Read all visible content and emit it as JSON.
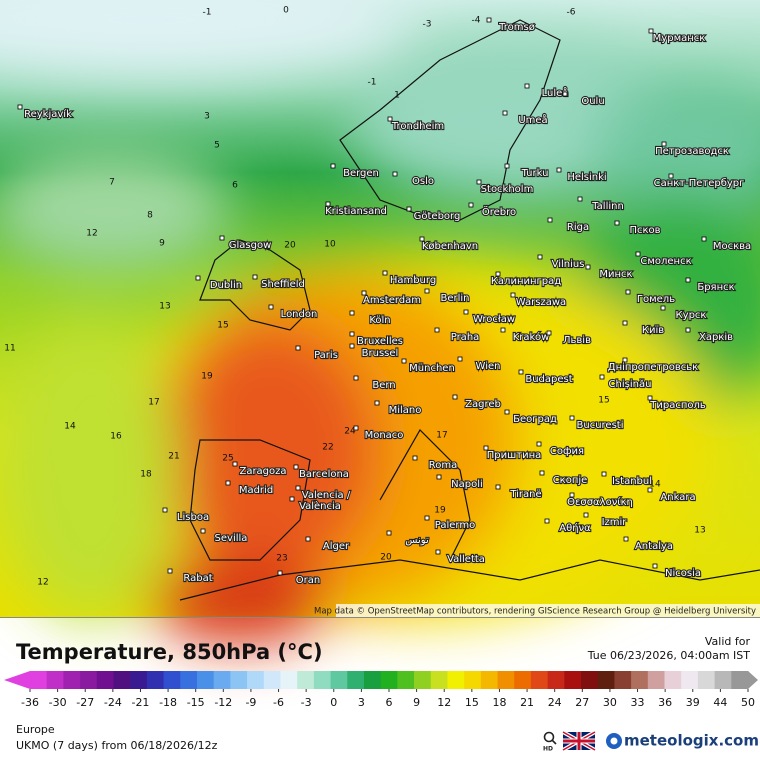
{
  "header": {
    "title": "Temperature, 850hPa (°C)",
    "valid_label": "Valid for",
    "valid_time": "Tue 06/23/2026, 04:00am IST"
  },
  "footer": {
    "region": "Europe",
    "model": "UKMO (7 days) from 06/18/2026/12z",
    "hd": "HD",
    "brand": "meteologix.com"
  },
  "map": {
    "attribution": "Map data © OpenStreetMap contributors, rendering GIScience Research Group @ Heidelberg University",
    "cities": [
      "Reykjavík",
      "Tromsø",
      "Мурманск",
      "Luleå",
      "Oulu",
      "Trondheim",
      "Umeå",
      "Петрозаводск",
      "Bergen",
      "Oslo",
      "Stockholm",
      "Turku",
      "Helsinki",
      "Санкт-Петербург",
      "Kristiansand",
      "Göteborg",
      "Örebro",
      "Tallinn",
      "Riga",
      "Псков",
      "Glasgow",
      "København",
      "Москва",
      "Vilnius",
      "Минск",
      "Смоленск",
      "Dublin",
      "Sheffield",
      "Hamburg",
      "Калининград",
      "Брянск",
      "Amsterdam",
      "Berlin",
      "Warszawa",
      "Гомель",
      "London",
      "Köln",
      "Wrocław",
      "Курск",
      "Praha",
      "Kraków",
      "Львів",
      "Київ",
      "Харків",
      "Bruxelles",
      "Brussel",
      "Paris",
      "München",
      "Wien",
      "Дніпропетровськ",
      "Budapest",
      "Chișinău",
      "Bern",
      "Тирасполь",
      "Milano",
      "Zagreb",
      "Београд",
      "Monaco",
      "Bucuresti",
      "Приштина",
      "София",
      "Roma",
      "Zaragoza",
      "Barcelona",
      "Istanbul",
      "Napoli",
      "Madrid",
      "Скопје",
      "Tiranë",
      "Valencia /",
      "València",
      "Θεσσαλονίκη",
      "Ankara",
      "Lisboa",
      "Izmir",
      "Αθήνα",
      "Palermo",
      "Sevilla",
      "Antalya",
      "Alger",
      "تونس",
      "Valletta",
      "Nicosia",
      "Rabat",
      "Oran"
    ],
    "contour_labels": [
      "-1",
      "0",
      "-3",
      "-4",
      "-6",
      "-1",
      "1",
      "3",
      "5",
      "6",
      "7",
      "8",
      "9",
      "10",
      "11",
      "13",
      "12",
      "15",
      "17",
      "14",
      "16",
      "18",
      "19",
      "20",
      "21",
      "22",
      "24",
      "25",
      "23",
      "20",
      "19",
      "17",
      "15",
      "14",
      "13",
      "12"
    ]
  },
  "colorbar": {
    "ticks": [
      -36,
      -30,
      -27,
      -24,
      -21,
      -18,
      -15,
      -12,
      -9,
      -6,
      -3,
      0,
      3,
      6,
      9,
      12,
      15,
      18,
      21,
      24,
      27,
      30,
      33,
      36,
      39,
      44,
      50
    ],
    "colors": [
      "#e040e0",
      "#c030c8",
      "#a020b0",
      "#8a1aa0",
      "#701090",
      "#501080",
      "#3a1a90",
      "#3030b0",
      "#3050d0",
      "#3870e0",
      "#4a90e8",
      "#6aaaf0",
      "#8cc4f4",
      "#b0d8f8",
      "#d0e8fa",
      "#e6f4fa",
      "#bfead8",
      "#90dcc0",
      "#60c8a0",
      "#30b070",
      "#18a040",
      "#20b020",
      "#50c020",
      "#90d020",
      "#c8e020",
      "#f0f000",
      "#f5d800",
      "#f5b800",
      "#f09000",
      "#ec6c00",
      "#e04818",
      "#c82818",
      "#a81010",
      "#801010",
      "#602010",
      "#8a4030",
      "#b07060",
      "#d0a0a0",
      "#e8d0d8",
      "#f0e8f0",
      "#d8d8d8",
      "#b8b8b8",
      "#989898"
    ],
    "end_colors": [
      "#e040e0",
      "#989898"
    ]
  }
}
